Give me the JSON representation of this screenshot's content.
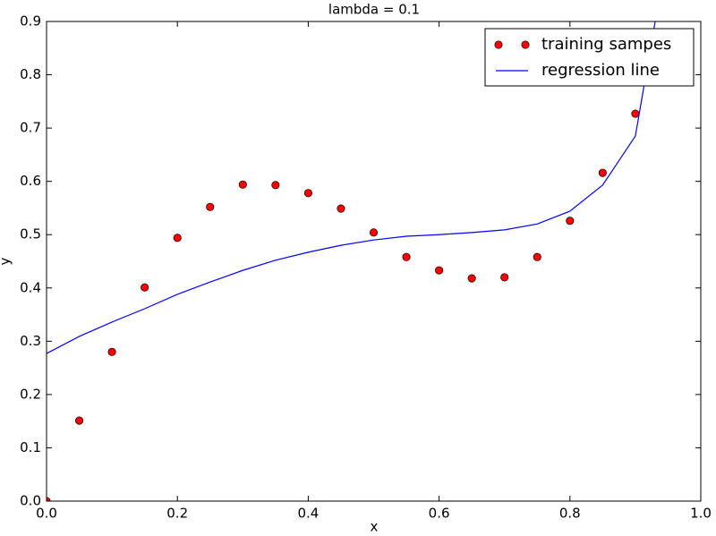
{
  "chart_data": {
    "type": "scatter-line",
    "title": "lambda = 0.1",
    "x_label": "x",
    "y_label": "y",
    "xlim": [
      0,
      1
    ],
    "ylim": [
      0,
      0.9
    ],
    "xticks": [
      {
        "value": 0,
        "label": "0.0"
      },
      0.2,
      0.4,
      0.6,
      0.8,
      {
        "value": 1,
        "label": "1.0"
      }
    ],
    "yticks": [
      {
        "value": 0,
        "label": "0.0"
      },
      0.1,
      0.2,
      0.3,
      0.4,
      0.5,
      0.6,
      0.7,
      0.8,
      0.9
    ],
    "grid": false,
    "legend": "upper right",
    "series": [
      {
        "name": "training sampes",
        "kind": "markers",
        "color": "#ff0000",
        "x": [
          0,
          0.05,
          0.1,
          0.15,
          0.2,
          0.25,
          0.3,
          0.35,
          0.4,
          0.45,
          0.5,
          0.55,
          0.6,
          0.65,
          0.7,
          0.75,
          0.8,
          0.85,
          0.9
        ],
        "values": [
          0.0,
          0.151,
          0.28,
          0.401,
          0.494,
          0.552,
          0.594,
          0.593,
          0.578,
          0.549,
          0.504,
          0.458,
          0.433,
          0.418,
          0.42,
          0.458,
          0.526,
          0.616,
          0.727
        ]
      },
      {
        "name": "regression line",
        "kind": "line",
        "color": "#0000ff",
        "x": [
          0,
          0.05,
          0.1,
          0.15,
          0.2,
          0.25,
          0.3,
          0.35,
          0.4,
          0.45,
          0.5,
          0.55,
          0.6,
          0.65,
          0.7,
          0.75,
          0.8,
          0.85,
          0.9,
          0.95
        ],
        "values": [
          0.277,
          0.309,
          0.336,
          0.361,
          0.388,
          0.411,
          0.433,
          0.452,
          0.467,
          0.48,
          0.49,
          0.497,
          0.5,
          0.504,
          0.509,
          0.52,
          0.544,
          0.593,
          0.685,
          1.04
        ]
      }
    ]
  }
}
